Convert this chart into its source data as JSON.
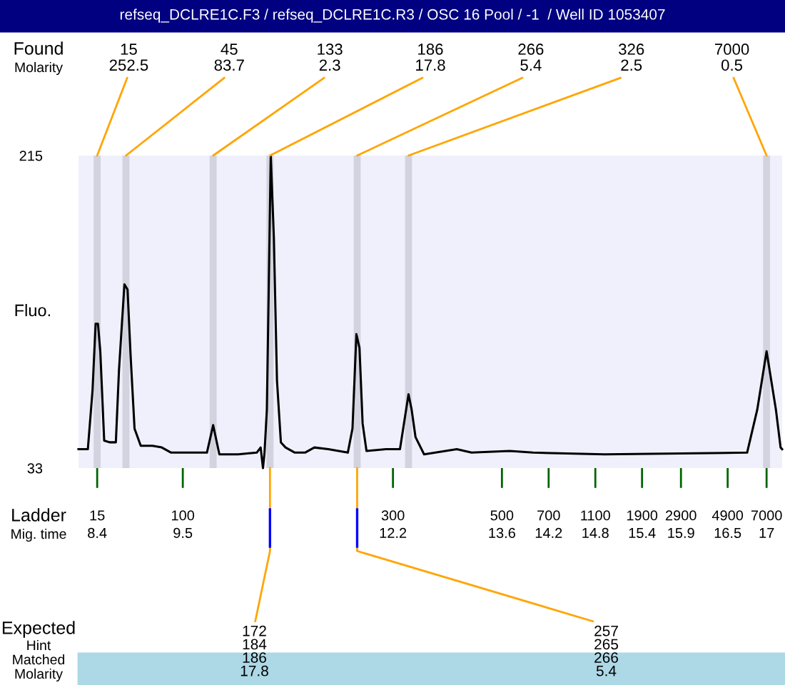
{
  "chart_data": {
    "type": "line",
    "title": "refseq_DCLRE1C.F3 / refseq_DCLRE1C.R3 / OSC 16 Pool / -1  / Well ID 1053407",
    "ylabel": "Fluo.",
    "xlim": [
      8.16,
      17.2
    ],
    "ylim": [
      33,
      215
    ],
    "yticks": [
      33,
      215
    ],
    "xticks": [
      8.4,
      9.5,
      12.2,
      13.6,
      14.2,
      14.8,
      15.4,
      15.9,
      16.5,
      17
    ],
    "grid": false,
    "legend": false,
    "series": [
      {
        "color": "#000000",
        "x": [
          8.16,
          8.28,
          8.34,
          8.38,
          8.41,
          8.44,
          8.49,
          8.56,
          8.64,
          8.68,
          8.75,
          8.79,
          8.83,
          8.88,
          8.96,
          9.11,
          9.23,
          9.35,
          9.81,
          9.89,
          9.97,
          10.21,
          10.45,
          10.5,
          10.53,
          10.55,
          10.58,
          10.63,
          10.67,
          10.71,
          10.76,
          10.82,
          10.94,
          11.07,
          11.19,
          11.37,
          11.62,
          11.68,
          11.73,
          11.77,
          11.81,
          11.86,
          12.11,
          12.29,
          12.4,
          12.44,
          12.49,
          12.6,
          13.02,
          13.21,
          13.7,
          14.0,
          14.92,
          16.75,
          16.88,
          17.0,
          17.12,
          17.18,
          17.2
        ],
        "values": [
          44,
          44,
          78,
          117,
          117,
          101,
          49,
          48,
          48,
          90,
          140,
          137,
          98,
          56,
          46,
          46,
          45,
          42,
          42,
          58,
          41,
          41,
          42,
          45,
          33,
          42,
          67,
          215,
          167,
          84,
          48,
          45,
          42,
          42,
          45,
          44,
          42,
          56,
          111,
          103,
          59,
          43,
          44,
          44,
          76,
          67,
          51,
          41,
          44,
          42,
          43,
          42,
          41,
          42,
          67,
          101,
          67,
          45,
          44
        ]
      }
    ],
    "bands": [
      {
        "axis": "x",
        "from": 8.355,
        "to": 8.445,
        "color": "#d3d3e0"
      },
      {
        "axis": "x",
        "from": 8.725,
        "to": 8.815,
        "color": "#d3d3e0"
      },
      {
        "axis": "x",
        "from": 9.845,
        "to": 9.935,
        "color": "#d3d3e0"
      },
      {
        "axis": "x",
        "from": 10.575,
        "to": 10.665,
        "color": "#d3d3e0"
      },
      {
        "axis": "x",
        "from": 11.695,
        "to": 11.785,
        "color": "#d3d3e0"
      },
      {
        "axis": "x",
        "from": 12.355,
        "to": 12.445,
        "color": "#d3d3e0"
      },
      {
        "axis": "x",
        "from": 16.955,
        "to": 17.045,
        "color": "#d3d3e0"
      }
    ],
    "annotations": [
      "Found\nMolarity",
      "Ladder\nMig. time",
      "Expected\nHint\nMatched\nMolarity",
      {
        "text": "15\n252.5",
        "x": 8.4,
        "y": 215
      },
      {
        "text": "45\n83.7",
        "x": 8.77,
        "y": 215
      },
      {
        "text": "133\n2.3",
        "x": 9.89,
        "y": 215
      },
      {
        "text": "186\n17.8",
        "x": 10.62,
        "y": 215
      },
      {
        "text": "266\n5.4",
        "x": 11.74,
        "y": 215
      },
      {
        "text": "326\n2.5",
        "x": 12.4,
        "y": 215
      },
      {
        "text": "7000\n0.5",
        "x": 17.0,
        "y": 215
      },
      {
        "text": "172\n184\n186\n17.8",
        "x": 10.62,
        "y": 33
      },
      {
        "text": "257\n265\n266\n5.4",
        "x": 11.74,
        "y": 33
      },
      "15",
      "100",
      "300",
      "500",
      "700",
      "1100",
      "1900",
      "2900",
      "4900",
      "7000"
    ]
  }
}
